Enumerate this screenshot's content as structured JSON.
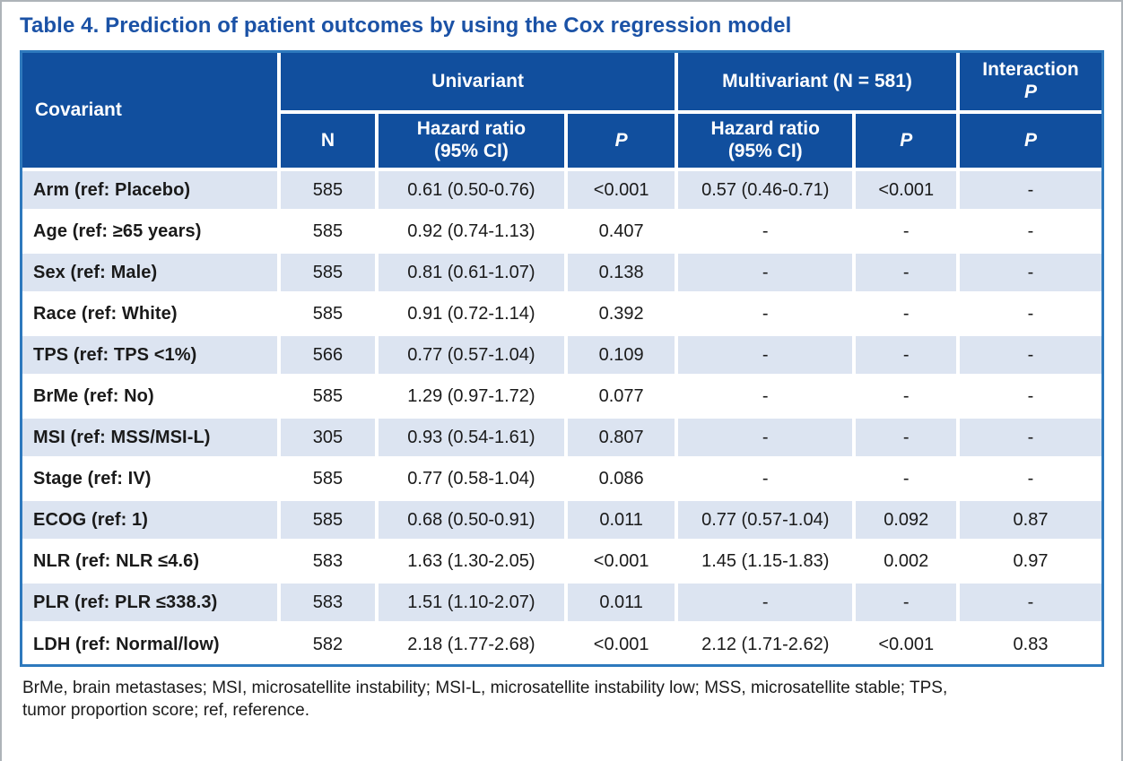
{
  "page": {
    "title": "Table 4. Prediction of patient outcomes by using the Cox regression model",
    "footnote_lines": [
      "BrMe, brain metastases; MSI, microsatellite instability; MSI-L, microsatellite instability low; MSS, microsatellite stable; TPS,",
      "tumor proportion score; ref, reference."
    ]
  },
  "colors": {
    "header_bg": "#114F9E",
    "row_alt_bg": "#DCE4F1",
    "table_border": "#2E79BD",
    "title_text": "#1B52A6"
  },
  "table": {
    "header": {
      "covariant": "Covariant",
      "univariant_group": "Univariant",
      "multivariant_group": "Multivariant (N = 581)",
      "interaction_line1": "Interaction",
      "interaction_line2": "P",
      "sub_n": "N",
      "sub_hr_line1": "Hazard ratio",
      "sub_hr_line2": "(95% CI)",
      "sub_p": "P"
    },
    "rows": [
      {
        "covariant": "Arm (ref: Placebo)",
        "n": "585",
        "uni_hr": "0.61 (0.50-0.76)",
        "uni_p": "<0.001",
        "multi_hr": "0.57 (0.46-0.71)",
        "multi_p": "<0.001",
        "interaction_p": "-"
      },
      {
        "covariant": "Age (ref: ≥65 years)",
        "n": "585",
        "uni_hr": "0.92 (0.74-1.13)",
        "uni_p": "0.407",
        "multi_hr": "-",
        "multi_p": "-",
        "interaction_p": "-"
      },
      {
        "covariant": "Sex (ref: Male)",
        "n": "585",
        "uni_hr": "0.81 (0.61-1.07)",
        "uni_p": "0.138",
        "multi_hr": "-",
        "multi_p": "-",
        "interaction_p": "-"
      },
      {
        "covariant": "Race (ref: White)",
        "n": "585",
        "uni_hr": "0.91 (0.72-1.14)",
        "uni_p": "0.392",
        "multi_hr": "-",
        "multi_p": "-",
        "interaction_p": "-"
      },
      {
        "covariant": "TPS (ref: TPS <1%)",
        "n": "566",
        "uni_hr": "0.77 (0.57-1.04)",
        "uni_p": "0.109",
        "multi_hr": "-",
        "multi_p": "-",
        "interaction_p": "-"
      },
      {
        "covariant": "BrMe (ref: No)",
        "n": "585",
        "uni_hr": "1.29 (0.97-1.72)",
        "uni_p": "0.077",
        "multi_hr": "-",
        "multi_p": "-",
        "interaction_p": "-"
      },
      {
        "covariant": "MSI (ref: MSS/MSI-L)",
        "n": "305",
        "uni_hr": "0.93 (0.54-1.61)",
        "uni_p": "0.807",
        "multi_hr": "-",
        "multi_p": "-",
        "interaction_p": "-"
      },
      {
        "covariant": "Stage (ref: IV)",
        "n": "585",
        "uni_hr": "0.77 (0.58-1.04)",
        "uni_p": "0.086",
        "multi_hr": "-",
        "multi_p": "-",
        "interaction_p": "-"
      },
      {
        "covariant": "ECOG (ref: 1)",
        "n": "585",
        "uni_hr": "0.68 (0.50-0.91)",
        "uni_p": "0.011",
        "multi_hr": "0.77 (0.57-1.04)",
        "multi_p": "0.092",
        "interaction_p": "0.87"
      },
      {
        "covariant": "NLR (ref: NLR ≤4.6)",
        "n": "583",
        "uni_hr": "1.63 (1.30-2.05)",
        "uni_p": "<0.001",
        "multi_hr": "1.45 (1.15-1.83)",
        "multi_p": "0.002",
        "interaction_p": "0.97"
      },
      {
        "covariant": "PLR (ref: PLR ≤338.3)",
        "n": "583",
        "uni_hr": "1.51 (1.10-2.07)",
        "uni_p": "0.011",
        "multi_hr": "-",
        "multi_p": "-",
        "interaction_p": "-"
      },
      {
        "covariant": "LDH (ref: Normal/low)",
        "n": "582",
        "uni_hr": "2.18 (1.77-2.68)",
        "uni_p": "<0.001",
        "multi_hr": "2.12 (1.71-2.62)",
        "multi_p": "<0.001",
        "interaction_p": "0.83"
      }
    ]
  }
}
